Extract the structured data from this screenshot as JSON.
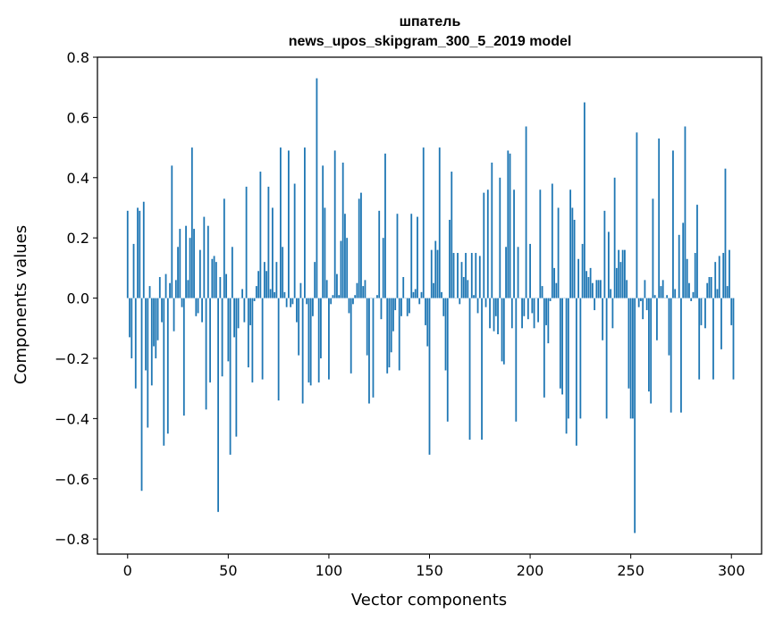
{
  "chart_data": {
    "type": "bar",
    "title": "шпатель",
    "subtitle": "news_upos_skipgram_300_5_2019 model",
    "xlabel": "Vector components",
    "ylabel": "Components values",
    "xlim": [
      -15,
      315
    ],
    "ylim": [
      -0.85,
      0.8
    ],
    "x_ticks": [
      0,
      50,
      100,
      150,
      200,
      250,
      300
    ],
    "y_ticks": [
      -0.8,
      -0.6,
      -0.4,
      -0.2,
      0.0,
      0.2,
      0.4,
      0.6,
      0.8
    ],
    "x_tick_labels": [
      "0",
      "50",
      "100",
      "150",
      "200",
      "250",
      "300"
    ],
    "y_tick_labels": [
      "−0.8",
      "−0.6",
      "−0.4",
      "−0.2",
      "0.0",
      "0.2",
      "0.4",
      "0.6",
      "0.8"
    ],
    "grid": false,
    "colors": {
      "bar": "#1f77b4",
      "axes": "#000000",
      "background": "#ffffff"
    },
    "values": [
      0.29,
      -0.13,
      -0.2,
      0.18,
      -0.3,
      0.3,
      0.29,
      -0.64,
      0.32,
      -0.24,
      -0.43,
      0.04,
      -0.29,
      -0.16,
      -0.2,
      -0.14,
      0.07,
      -0.08,
      -0.49,
      0.08,
      -0.45,
      0.05,
      0.44,
      -0.11,
      0.06,
      0.17,
      0.23,
      -0.03,
      -0.39,
      0.24,
      0.06,
      0.2,
      0.5,
      0.23,
      -0.06,
      -0.05,
      0.16,
      -0.08,
      0.27,
      -0.37,
      0.24,
      -0.28,
      0.13,
      0.14,
      0.12,
      -0.71,
      0.07,
      -0.26,
      0.33,
      0.08,
      -0.21,
      -0.52,
      0.17,
      -0.13,
      -0.46,
      -0.1,
      0.0,
      0.03,
      -0.08,
      0.37,
      -0.23,
      -0.09,
      -0.28,
      -0.01,
      0.04,
      0.09,
      0.42,
      -0.27,
      0.12,
      0.09,
      0.37,
      0.03,
      0.3,
      0.02,
      0.12,
      -0.34,
      0.5,
      0.17,
      0.02,
      -0.03,
      0.49,
      -0.03,
      -0.02,
      0.38,
      -0.08,
      -0.19,
      0.05,
      -0.35,
      0.5,
      -0.02,
      -0.28,
      -0.29,
      -0.06,
      0.12,
      0.73,
      -0.28,
      -0.2,
      0.44,
      0.3,
      0.06,
      -0.27,
      -0.02,
      0.01,
      0.49,
      0.08,
      0.01,
      0.19,
      0.45,
      0.28,
      0.2,
      -0.05,
      -0.25,
      -0.02,
      0.01,
      0.05,
      0.33,
      0.35,
      0.04,
      0.06,
      -0.19,
      -0.35,
      0.0,
      -0.33,
      0.0,
      0.01,
      0.29,
      -0.07,
      0.2,
      0.48,
      -0.25,
      -0.23,
      -0.18,
      -0.11,
      -0.04,
      0.28,
      -0.24,
      -0.06,
      0.07,
      0.0,
      -0.06,
      -0.05,
      0.28,
      0.02,
      0.03,
      0.27,
      -0.02,
      0.02,
      0.5,
      -0.09,
      -0.16,
      -0.52,
      0.16,
      0.05,
      0.19,
      0.16,
      0.5,
      0.02,
      -0.06,
      -0.24,
      -0.41,
      0.26,
      0.42,
      0.15,
      0.0,
      0.15,
      -0.02,
      0.12,
      0.07,
      0.15,
      0.06,
      -0.47,
      0.15,
      0.01,
      0.15,
      -0.05,
      0.14,
      -0.47,
      0.35,
      -0.03,
      0.36,
      -0.1,
      0.45,
      -0.11,
      -0.06,
      -0.12,
      0.4,
      -0.21,
      -0.22,
      0.17,
      0.49,
      0.48,
      -0.1,
      0.36,
      -0.41,
      0.17,
      0.0,
      -0.1,
      -0.06,
      0.57,
      -0.07,
      0.18,
      -0.05,
      -0.1,
      0.0,
      -0.08,
      0.36,
      0.04,
      -0.33,
      -0.09,
      -0.15,
      -0.01,
      0.38,
      0.1,
      0.05,
      0.3,
      -0.3,
      -0.32,
      0.0,
      -0.45,
      -0.4,
      0.36,
      0.3,
      0.26,
      -0.49,
      0.13,
      -0.4,
      0.18,
      0.65,
      0.09,
      0.07,
      0.1,
      0.05,
      -0.04,
      0.06,
      0.06,
      0.06,
      -0.14,
      0.29,
      -0.4,
      0.22,
      0.03,
      -0.1,
      0.4,
      0.1,
      0.16,
      0.12,
      0.16,
      0.16,
      0.06,
      -0.3,
      -0.4,
      -0.4,
      -0.78,
      0.55,
      -0.03,
      -0.01,
      -0.07,
      0.06,
      -0.04,
      -0.31,
      -0.35,
      0.33,
      0.01,
      -0.14,
      0.53,
      0.04,
      0.06,
      0.0,
      0.01,
      -0.19,
      -0.38,
      0.49,
      0.03,
      0.0,
      0.21,
      -0.38,
      0.25,
      0.57,
      0.13,
      0.05,
      -0.01,
      0.02,
      0.15,
      0.31,
      -0.27,
      -0.09,
      0.0,
      -0.1,
      0.05,
      0.07,
      0.07,
      -0.27,
      0.12,
      0.03,
      0.14,
      -0.17,
      0.15,
      0.43,
      0.04,
      0.16,
      -0.09,
      -0.27
    ]
  }
}
